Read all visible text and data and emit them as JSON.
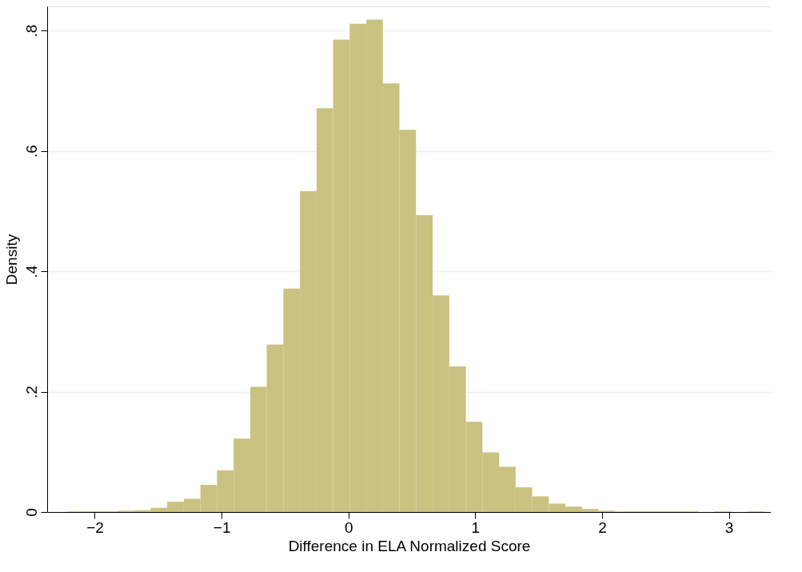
{
  "chart_data": {
    "type": "histogram",
    "xlabel": "Difference in ELA Normalized Score",
    "ylabel": "Density",
    "color": "#c9c281",
    "bins": [
      -2.214,
      -2.083,
      -1.952,
      -1.821,
      -1.69,
      -1.559,
      -1.429,
      -1.298,
      -1.167,
      -1.036,
      -0.905,
      -0.774,
      -0.644,
      -0.513,
      -0.382,
      -0.251,
      -0.121,
      0.01,
      0.141,
      0.272,
      0.402,
      0.533,
      0.664,
      0.795,
      0.926,
      1.056,
      1.187,
      1.318,
      1.449,
      1.58,
      1.71,
      1.841,
      1.972,
      2.103,
      2.234,
      2.364,
      2.495,
      2.626,
      2.757,
      2.888,
      3.019,
      3.149,
      3.28
    ],
    "values": [
      0.001,
      0.001,
      0.001,
      0.002,
      0.003,
      0.007,
      0.017,
      0.022,
      0.045,
      0.069,
      0.122,
      0.208,
      0.278,
      0.371,
      0.533,
      0.671,
      0.785,
      0.811,
      0.818,
      0.712,
      0.635,
      0.493,
      0.36,
      0.242,
      0.15,
      0.099,
      0.075,
      0.041,
      0.026,
      0.014,
      0.009,
      0.005,
      0.002,
      0.001,
      0.001,
      0.001,
      0.001,
      0.001,
      0,
      0.001,
      0,
      0.001
    ],
    "xlim": [
      -2.375,
      3.33
    ],
    "xticks": [
      -2,
      -1,
      0,
      1,
      2,
      3
    ],
    "ylim": [
      0,
      0.84
    ],
    "yticks": [
      {
        "value": 0,
        "label": "0"
      },
      {
        "value": 0.2,
        "label": ".2"
      },
      {
        "value": 0.4,
        "label": ".4"
      },
      {
        "value": 0.6,
        "label": ".6"
      },
      {
        "value": 0.8,
        "label": ".8"
      }
    ],
    "grid": "y",
    "legend": false
  }
}
